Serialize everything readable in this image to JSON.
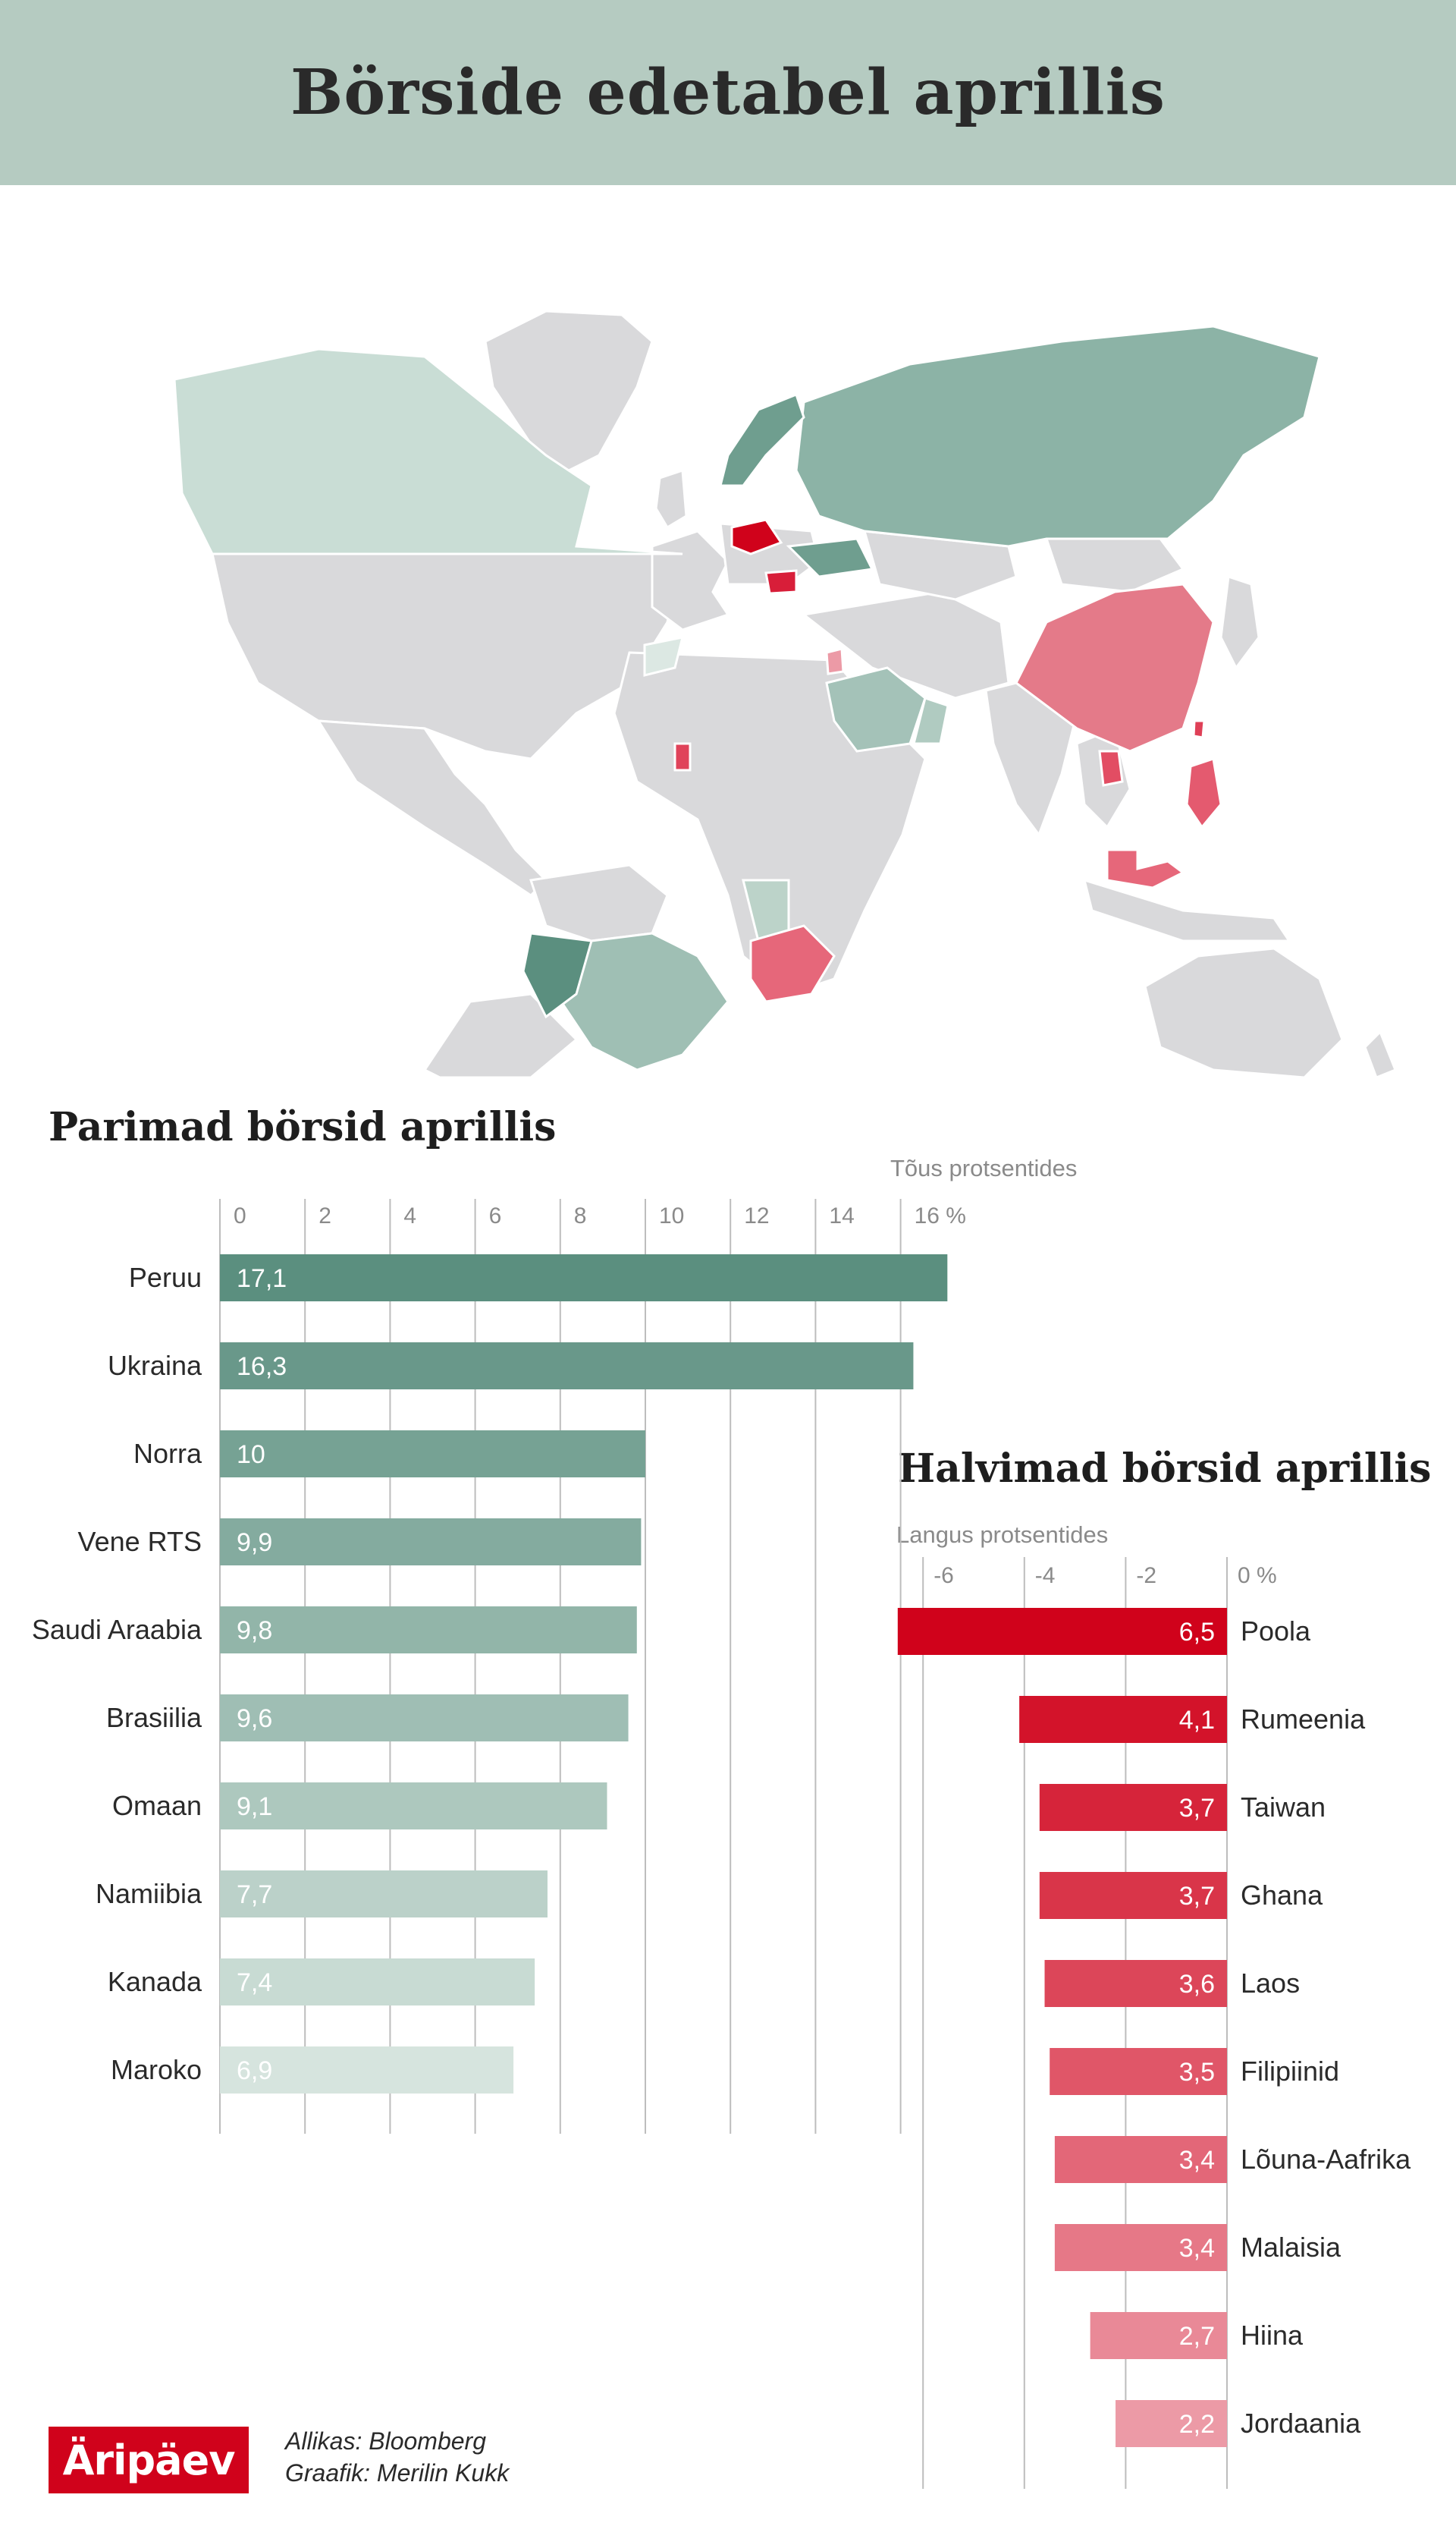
{
  "title": "Börside edetabel aprillis",
  "colors": {
    "header_bg": "#b5cbc1",
    "land_neutral": "#d9d9db",
    "gain_strong": "#5b8f7f",
    "gain_light": "#d6e4de",
    "loss_strong": "#d0021b",
    "loss_light": "#ec9aa6"
  },
  "best": {
    "title": "Parimad börsid aprillis",
    "unit_label": "Tõus protsentides"
  },
  "worst": {
    "title": "Halvimad börsid aprillis",
    "unit_label": "Langus protsentides"
  },
  "chart_data": [
    {
      "type": "bar",
      "orientation": "horizontal",
      "title": "Parimad börsid aprillis",
      "xlabel": "Tõus protsentides",
      "xlim": [
        0,
        17.1
      ],
      "ticks": [
        "0",
        "2",
        "4",
        "6",
        "8",
        "10",
        "12",
        "14",
        "16 %"
      ],
      "tick_values": [
        0,
        2,
        4,
        6,
        8,
        10,
        12,
        14,
        16
      ],
      "grid": true,
      "categories": [
        "Peruu",
        "Ukraina",
        "Norra",
        "Vene RTS",
        "Saudi Araabia",
        "Brasiilia",
        "Omaan",
        "Namiibia",
        "Kanada",
        "Maroko"
      ],
      "values": [
        17.1,
        16.3,
        10,
        9.9,
        9.8,
        9.6,
        9.1,
        7.7,
        7.4,
        6.9
      ],
      "labels": [
        "17,1",
        "16,3",
        "10",
        "9,9",
        "9,8",
        "9,6",
        "9,1",
        "7,7",
        "7,4",
        "6,9"
      ]
    },
    {
      "type": "bar",
      "orientation": "horizontal",
      "title": "Halvimad börsid aprillis",
      "xlabel": "Langus protsentides",
      "xlim": [
        -6.5,
        0
      ],
      "ticks": [
        "-6",
        "-4",
        "-2",
        "0 %"
      ],
      "tick_values": [
        -6,
        -4,
        -2,
        0
      ],
      "grid": true,
      "categories": [
        "Poola",
        "Rumeenia",
        "Taiwan",
        "Ghana",
        "Laos",
        "Filipiinid",
        "Lõuna-Aafrika",
        "Malaisia",
        "Hiina",
        "Jordaania"
      ],
      "values": [
        -6.5,
        -4.1,
        -3.7,
        -3.7,
        -3.6,
        -3.5,
        -3.4,
        -3.4,
        -2.7,
        -2.2
      ],
      "labels": [
        "6,5",
        "4,1",
        "3,7",
        "3,7",
        "3,6",
        "3,5",
        "3,4",
        "3,4",
        "2,7",
        "2,2"
      ]
    }
  ],
  "map": {
    "regions": [
      {
        "name": "Peruu",
        "group": "gain",
        "rank": 1
      },
      {
        "name": "Ukraina",
        "group": "gain",
        "rank": 2
      },
      {
        "name": "Norra",
        "group": "gain",
        "rank": 3
      },
      {
        "name": "Vene RTS",
        "group": "gain",
        "rank": 4
      },
      {
        "name": "Saudi Araabia",
        "group": "gain",
        "rank": 5
      },
      {
        "name": "Brasiilia",
        "group": "gain",
        "rank": 6
      },
      {
        "name": "Omaan",
        "group": "gain",
        "rank": 7
      },
      {
        "name": "Namiibia",
        "group": "gain",
        "rank": 8
      },
      {
        "name": "Kanada",
        "group": "gain",
        "rank": 9
      },
      {
        "name": "Maroko",
        "group": "gain",
        "rank": 10
      },
      {
        "name": "Poola",
        "group": "loss",
        "rank": 1
      },
      {
        "name": "Rumeenia",
        "group": "loss",
        "rank": 2
      },
      {
        "name": "Taiwan",
        "group": "loss",
        "rank": 3
      },
      {
        "name": "Ghana",
        "group": "loss",
        "rank": 4
      },
      {
        "name": "Laos",
        "group": "loss",
        "rank": 5
      },
      {
        "name": "Filipiinid",
        "group": "loss",
        "rank": 6
      },
      {
        "name": "Lõuna-Aafrika",
        "group": "loss",
        "rank": 7
      },
      {
        "name": "Malaisia",
        "group": "loss",
        "rank": 8
      },
      {
        "name": "Hiina",
        "group": "loss",
        "rank": 9
      },
      {
        "name": "Jordaania",
        "group": "loss",
        "rank": 10
      }
    ]
  },
  "footer": {
    "logo": "Äripäev",
    "source_line": "Allikas:  Bloomberg",
    "credit_line": "Graafik:  Merilin Kukk"
  }
}
